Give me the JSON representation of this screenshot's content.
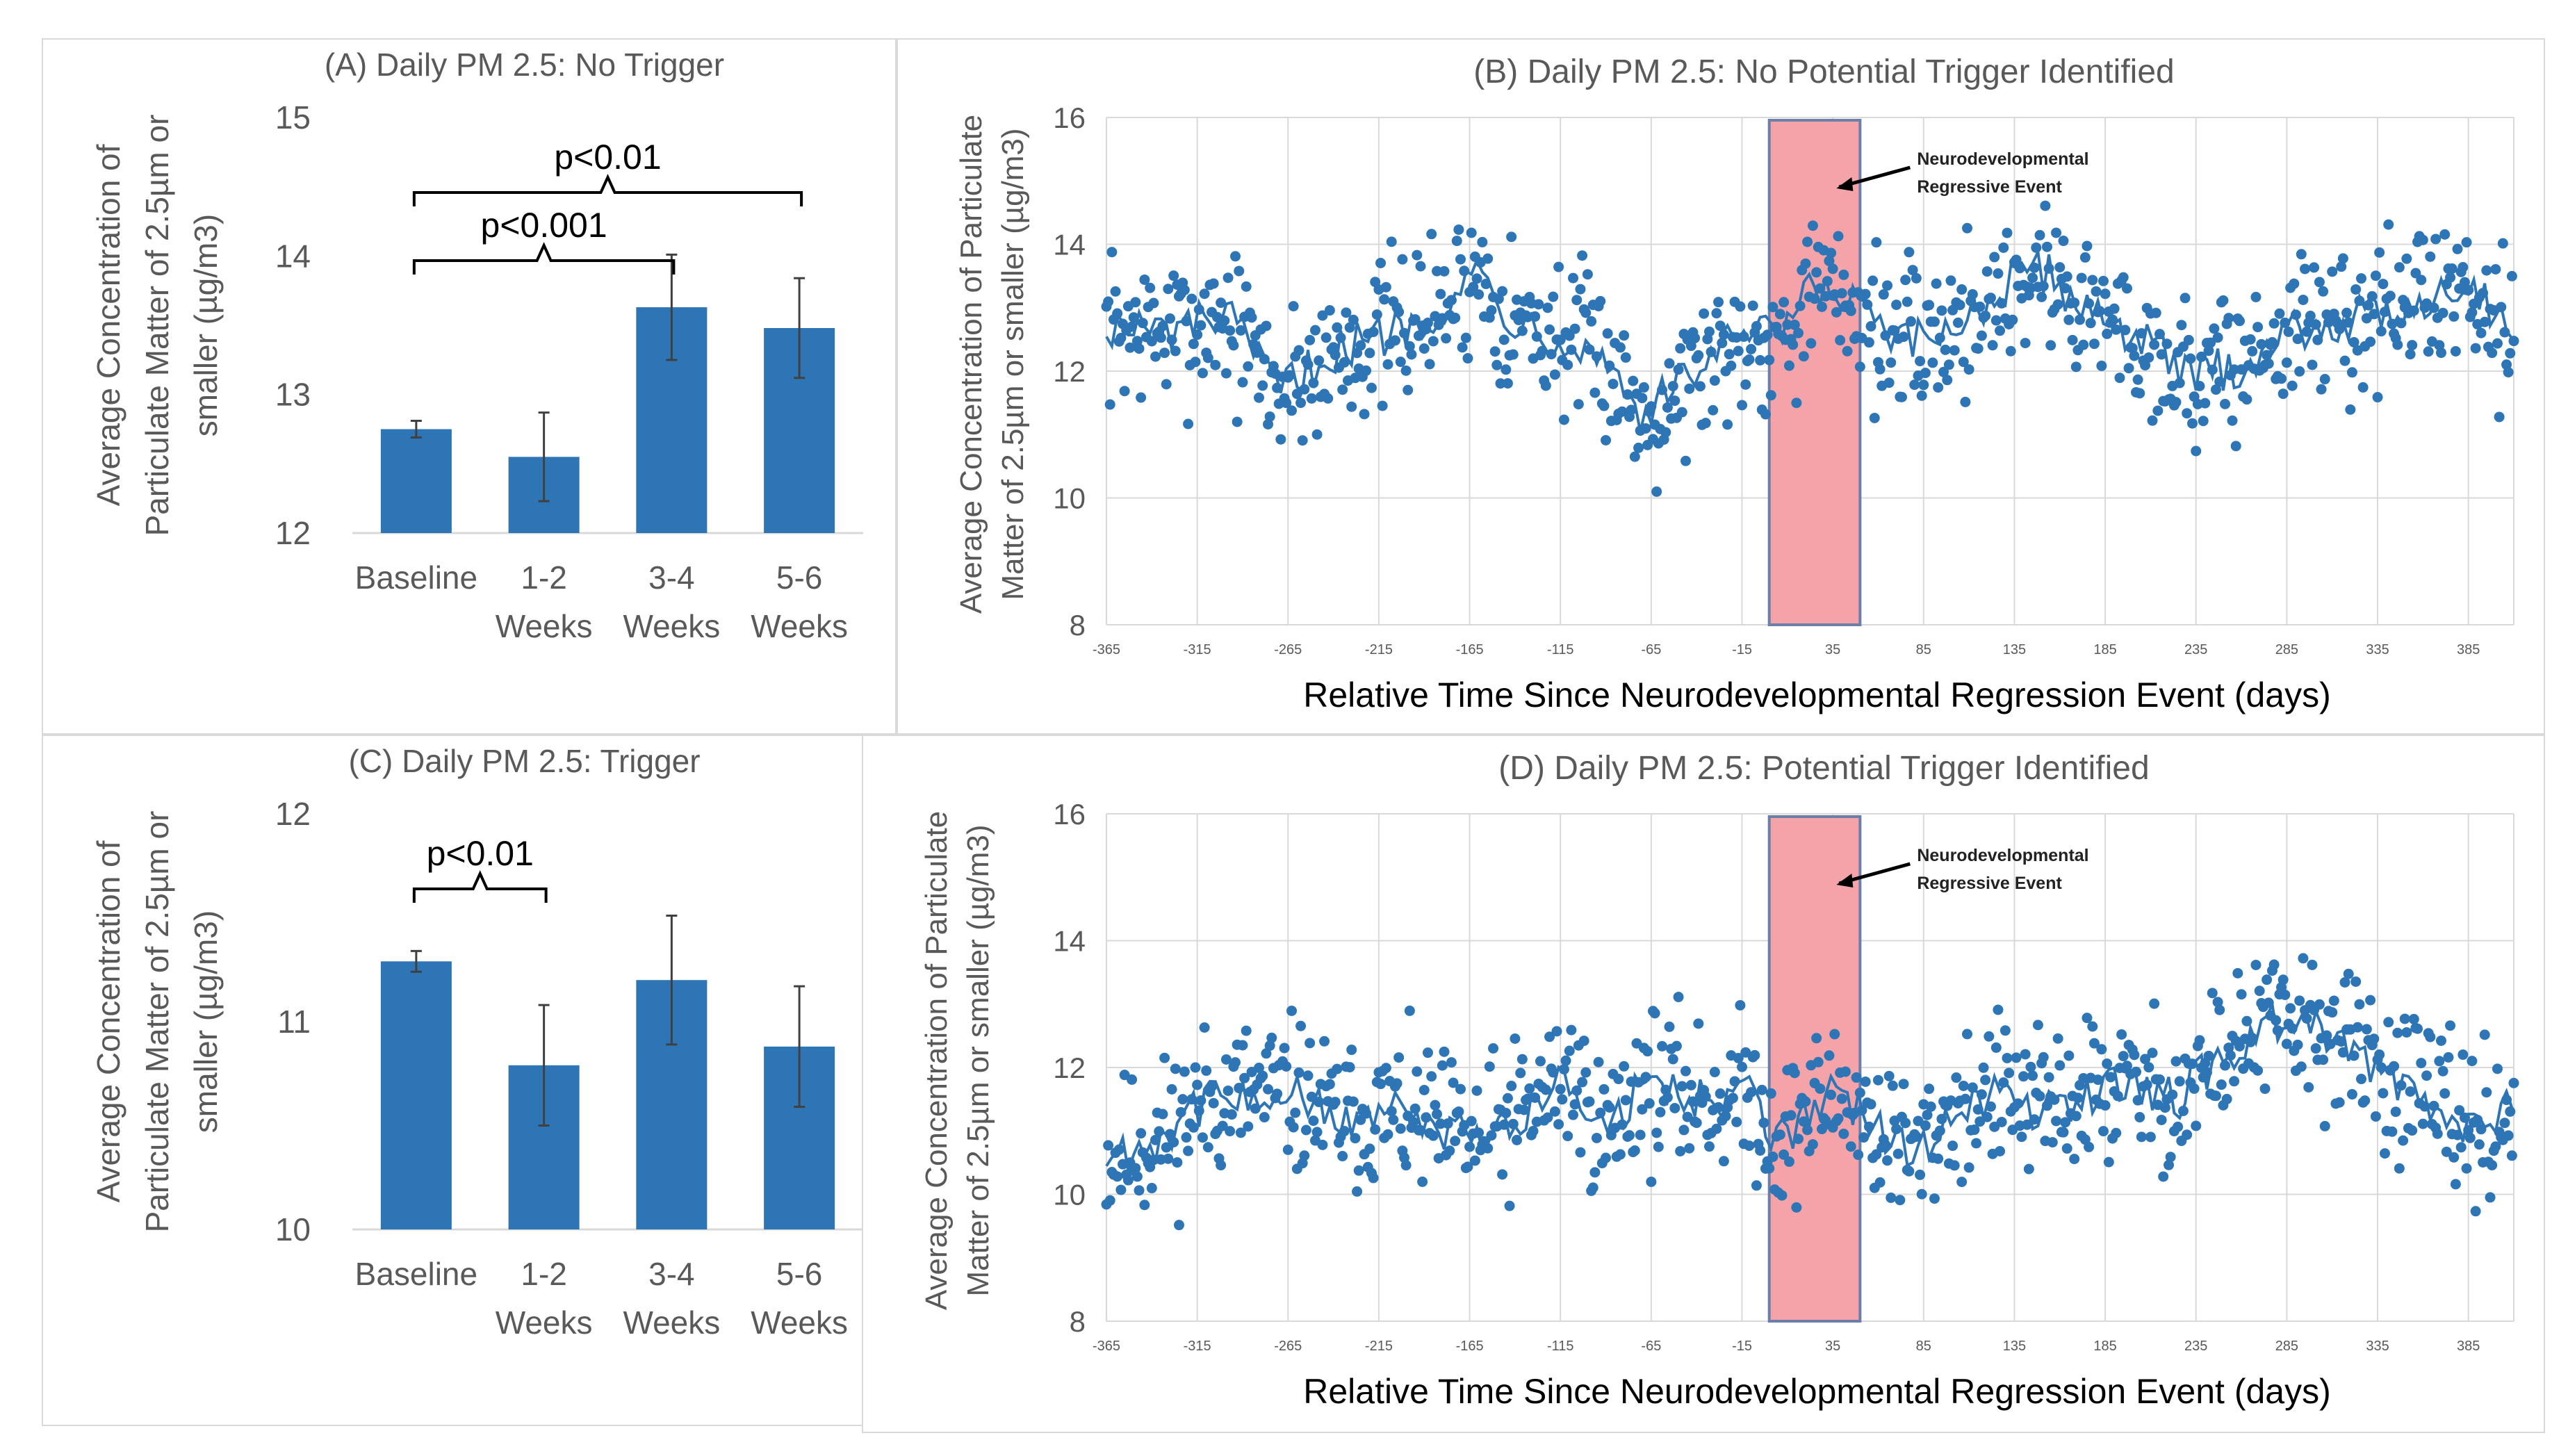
{
  "colors": {
    "bar": "#2e75b6",
    "point": "#2e75b6",
    "line": "#2e75b6",
    "highlight_fill": "#f4a3a8",
    "highlight_stroke": "#6b7fa8",
    "grid": "#d9d9d9",
    "text": "#595959",
    "black": "#000000"
  },
  "chart_data": [
    {
      "id": "A",
      "type": "bar",
      "title": "(A) Daily PM 2.5: No Trigger",
      "ylabel_lines": [
        "Average Concentration of",
        "Particulate Matter of 2.5µm or",
        "smaller (µg/m3)"
      ],
      "categories": [
        [
          "Baseline"
        ],
        [
          "1-2",
          "Weeks"
        ],
        [
          "3-4",
          "Weeks"
        ],
        [
          "5-6",
          "Weeks"
        ]
      ],
      "values": [
        12.75,
        12.55,
        13.63,
        13.48
      ],
      "errors": [
        0.06,
        0.32,
        0.38,
        0.36
      ],
      "ylim": [
        12,
        15
      ],
      "yticks": [
        12,
        13,
        14,
        15
      ],
      "brackets": [
        {
          "from": 0,
          "to": 3,
          "label": "p<0.01",
          "level": 0
        },
        {
          "from": 0,
          "to": 2,
          "label": "p<0.001",
          "level": 1
        }
      ]
    },
    {
      "id": "C",
      "type": "bar",
      "title": "(C) Daily PM 2.5: Trigger",
      "ylabel_lines": [
        "Average Concentration of",
        "Particulate Matter of 2.5µm or",
        "smaller (µg/m3)"
      ],
      "categories": [
        [
          "Baseline"
        ],
        [
          "1-2",
          "Weeks"
        ],
        [
          "3-4",
          "Weeks"
        ],
        [
          "5-6",
          "Weeks"
        ]
      ],
      "values": [
        11.29,
        10.79,
        11.2,
        10.88
      ],
      "errors": [
        0.05,
        0.29,
        0.31,
        0.29
      ],
      "ylim": [
        10,
        12
      ],
      "yticks": [
        10,
        11,
        12
      ],
      "brackets": [
        {
          "from": 0,
          "to": 1,
          "label": "p<0.01",
          "level": 0
        }
      ]
    },
    {
      "id": "B",
      "type": "scatter",
      "title": "(B) Daily PM 2.5: No Potential Trigger Identified",
      "xlabel": "Relative Time Since Neurodevelopmental Regression Event (days)",
      "ylabel_lines": [
        "Average Concentration of Particulate",
        "Matter of 2.5µm or smaller (µg/m3)"
      ],
      "xlim": [
        -365,
        410
      ],
      "ylim": [
        8,
        16
      ],
      "yticks": [
        8,
        10,
        12,
        14,
        16
      ],
      "xticks": [
        -365,
        -315,
        -265,
        -215,
        -165,
        -115,
        -65,
        -15,
        35,
        85,
        135,
        185,
        235,
        285,
        335,
        385
      ],
      "highlight": [
        0,
        50
      ],
      "annotation": [
        "Neurodevelopmental",
        "Regressive Event"
      ],
      "trend_anchors": [
        [
          -365,
          12.7
        ],
        [
          -330,
          12.6
        ],
        [
          -300,
          12.9
        ],
        [
          -270,
          11.7
        ],
        [
          -240,
          12.3
        ],
        [
          -210,
          12.6
        ],
        [
          -180,
          13.0
        ],
        [
          -160,
          13.6
        ],
        [
          -145,
          12.9
        ],
        [
          -120,
          12.6
        ],
        [
          -90,
          12.2
        ],
        [
          -70,
          11.3
        ],
        [
          -50,
          11.8
        ],
        [
          -30,
          12.3
        ],
        [
          -10,
          12.6
        ],
        [
          5,
          12.5
        ],
        [
          20,
          13.2
        ],
        [
          35,
          13.2
        ],
        [
          50,
          13.0
        ],
        [
          70,
          12.4
        ],
        [
          90,
          12.5
        ],
        [
          120,
          13.1
        ],
        [
          150,
          13.6
        ],
        [
          170,
          13.1
        ],
        [
          200,
          12.6
        ],
        [
          230,
          11.9
        ],
        [
          260,
          12.1
        ],
        [
          290,
          12.7
        ],
        [
          320,
          12.8
        ],
        [
          350,
          13.0
        ],
        [
          380,
          13.4
        ],
        [
          400,
          13.0
        ],
        [
          410,
          12.6
        ]
      ],
      "noise": 1.0,
      "seed": 7
    },
    {
      "id": "D",
      "type": "scatter",
      "title": "(D) Daily PM 2.5: Potential Trigger Identified",
      "xlabel": "Relative Time Since Neurodevelopmental Regression Event (days)",
      "ylabel_lines": [
        "Average Concentration of Particulate",
        "Matter of 2.5µm or smaller (µg/m3)"
      ],
      "xlim": [
        -365,
        410
      ],
      "ylim": [
        8,
        16
      ],
      "yticks": [
        8,
        10,
        12,
        14,
        16
      ],
      "xticks": [
        -365,
        -315,
        -265,
        -215,
        -165,
        -115,
        -65,
        -15,
        35,
        85,
        135,
        185,
        235,
        285,
        335,
        385
      ],
      "highlight": [
        0,
        50
      ],
      "annotation": [
        "Neurodevelopmental",
        "Regressive Event"
      ],
      "trend_anchors": [
        [
          -365,
          10.6
        ],
        [
          -340,
          10.8
        ],
        [
          -315,
          11.4
        ],
        [
          -290,
          11.6
        ],
        [
          -265,
          11.6
        ],
        [
          -240,
          11.2
        ],
        [
          -210,
          11.3
        ],
        [
          -180,
          11.0
        ],
        [
          -160,
          10.8
        ],
        [
          -130,
          11.4
        ],
        [
          -110,
          11.9
        ],
        [
          -90,
          10.9
        ],
        [
          -70,
          11.8
        ],
        [
          -50,
          11.6
        ],
        [
          -30,
          11.5
        ],
        [
          -10,
          11.6
        ],
        [
          5,
          10.8
        ],
        [
          20,
          11.3
        ],
        [
          40,
          11.6
        ],
        [
          60,
          11.0
        ],
        [
          80,
          10.6
        ],
        [
          100,
          11.3
        ],
        [
          125,
          11.6
        ],
        [
          150,
          11.3
        ],
        [
          175,
          11.6
        ],
        [
          200,
          11.7
        ],
        [
          225,
          11.5
        ],
        [
          250,
          12.2
        ],
        [
          275,
          12.7
        ],
        [
          300,
          12.6
        ],
        [
          320,
          12.3
        ],
        [
          345,
          11.8
        ],
        [
          370,
          11.3
        ],
        [
          395,
          11.0
        ],
        [
          410,
          11.4
        ]
      ],
      "noise": 1.0,
      "seed": 11
    }
  ]
}
